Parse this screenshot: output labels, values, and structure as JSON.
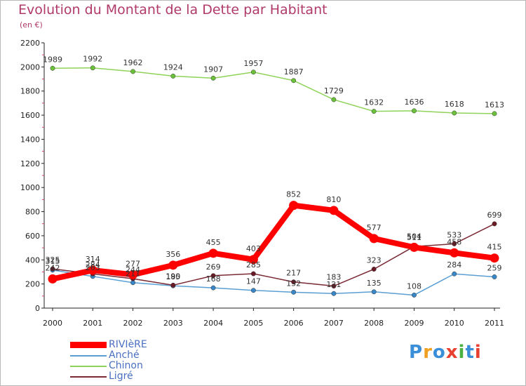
{
  "header": {
    "title": "Evolution du Montant de la Dette par Habitant",
    "subtitle": "(en €)"
  },
  "logo": {
    "text": "Proxiti",
    "colors": [
      "#3a8fd8",
      "#f0a020",
      "#3a8fd8",
      "#e84030",
      "#4ab040",
      "#3a8fd8",
      "#e84030"
    ]
  },
  "chart_data": {
    "type": "line",
    "title": "Evolution du Montant de la Dette par Habitant",
    "subtitle": "(en €)",
    "xlabel": "",
    "ylabel": "",
    "ylim": [
      0,
      2200
    ],
    "yticks": [
      0,
      200,
      400,
      600,
      800,
      1000,
      1200,
      1400,
      1600,
      1800,
      2000,
      2200
    ],
    "x": [
      "2000",
      "2001",
      "2002",
      "2003",
      "2004",
      "2005",
      "2006",
      "2007",
      "2008",
      "2009",
      "2010",
      "2011"
    ],
    "grid": false,
    "legend_position": "bottom-left",
    "series": [
      {
        "name": "Chinon",
        "color": "#8fd35a",
        "marker": "#6cc13a",
        "values": [
          1989,
          1992,
          1962,
          1924,
          1907,
          1957,
          1887,
          1729,
          1632,
          1636,
          1618,
          1613
        ]
      },
      {
        "name": "Anché",
        "color": "#5a9fd4",
        "marker": "#3a87c8",
        "values": [
          315,
          263,
          211,
          185,
          168,
          147,
          132,
          121,
          135,
          108,
          284,
          259
        ]
      },
      {
        "name": "Ligré",
        "color": "#7a2a35",
        "marker": "#6a1a25",
        "values": [
          325,
          284,
          244,
          190,
          269,
          285,
          217,
          183,
          323,
          511,
          533,
          699
        ]
      },
      {
        "name": "RIVIèRE",
        "color": "#ff0000",
        "marker": "#ff0000",
        "values": [
          242,
          314,
          277,
          356,
          455,
          403,
          852,
          810,
          577,
          504,
          458,
          415
        ]
      }
    ],
    "data_labels": [
      {
        "series": "Chinon",
        "labels": [
          "1989",
          "1992",
          "1962",
          "1924",
          "1907",
          "1957",
          "1887",
          "1729",
          "1632",
          "1636",
          "1618",
          "1613"
        ]
      },
      {
        "series": "Anché",
        "labels": [
          "315",
          "263",
          "211",
          "185",
          "168",
          "147",
          "132",
          "121",
          "135",
          "108",
          "284",
          "259"
        ]
      },
      {
        "series": "Ligré",
        "labels": [
          "325",
          "284",
          "244",
          "190",
          "269",
          "285",
          "217",
          "183",
          "323",
          "511",
          "533",
          "699"
        ]
      },
      {
        "series": "RIVIèRE",
        "labels": [
          "242",
          "314",
          "277",
          "356",
          "455",
          "403",
          "852",
          "810",
          "577",
          "504",
          "458",
          "415"
        ]
      }
    ]
  },
  "legend": [
    {
      "name": "RIVIèRE",
      "color": "#ff0000",
      "thick": true
    },
    {
      "name": "Anché",
      "color": "#5a9fd4",
      "thick": false
    },
    {
      "name": "Chinon",
      "color": "#8fd35a",
      "thick": false
    },
    {
      "name": "Ligré",
      "color": "#7a2a35",
      "thick": false
    }
  ]
}
